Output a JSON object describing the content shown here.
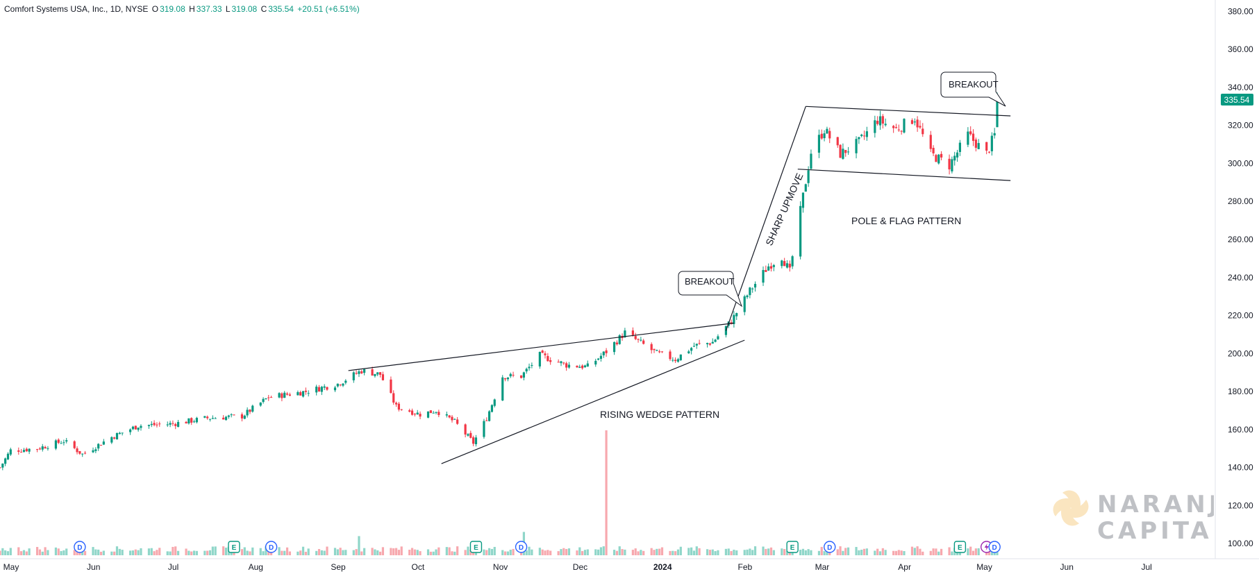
{
  "legend": {
    "symbol": "Comfort Systems USA, Inc., 1D, NYSE",
    "o_label": "O",
    "o_value": "319.08",
    "h_label": "H",
    "h_value": "337.33",
    "l_label": "L",
    "l_value": "319.08",
    "c_label": "C",
    "c_value": "335.54",
    "change": "+20.51 (+6.51%)"
  },
  "price_tag": "335.54",
  "colors": {
    "up": "#089981",
    "down": "#f23645",
    "vol_up": "#8fd6c9",
    "vol_down": "#f7a8ae",
    "line": "#131722",
    "tag": "#089981"
  },
  "annotations": {
    "breakout_left": "BREAKOUT",
    "breakout_right": "BREAKOUT",
    "sharp_upmove": "SHARP UPMOVE",
    "pole_flag": "POLE & FLAG PATTERN",
    "rising_wedge": "RISING WEDGE PATTERN"
  },
  "watermark": {
    "line1": "NARANJ",
    "line2": "CAPITAL"
  },
  "event_markers": [
    {
      "type": "D",
      "date": "2023-05-31"
    },
    {
      "type": "E",
      "date": "2023-07-28"
    },
    {
      "type": "D",
      "date": "2023-08-11"
    },
    {
      "type": "E",
      "date": "2023-10-27"
    },
    {
      "type": "D",
      "date": "2023-11-13"
    },
    {
      "type": "E",
      "date": "2024-02-23"
    },
    {
      "type": "D",
      "date": "2024-03-08"
    },
    {
      "type": "E",
      "date": "2024-04-26"
    },
    {
      "type": "lightning",
      "date": "2024-05-06"
    },
    {
      "type": "D",
      "date": "2024-05-09"
    }
  ],
  "chart_data": {
    "type": "candlestick",
    "title": "Comfort Systems USA, Inc., 1D, NYSE",
    "x_axis": {
      "type": "date",
      "range": [
        "2023-05-01",
        "2024-07-31"
      ],
      "tick_labels": [
        "May",
        "Jun",
        "Jul",
        "Aug",
        "Sep",
        "Oct",
        "Nov",
        "Dec",
        "2024",
        "Feb",
        "Mar",
        "Apr",
        "May",
        "Jun",
        "Jul"
      ]
    },
    "y_axis": {
      "range": [
        92,
        386
      ],
      "position": "right",
      "tick_labels": [
        "100.00",
        "120.00",
        "140.00",
        "160.00",
        "180.00",
        "200.00",
        "220.00",
        "240.00",
        "260.00",
        "280.00",
        "300.00",
        "320.00",
        "340.00",
        "360.00",
        "380.00"
      ]
    },
    "grid": false,
    "price_anchors": [
      [
        "2023-05-01",
        140
      ],
      [
        "2023-05-05",
        149
      ],
      [
        "2023-05-15",
        150
      ],
      [
        "2023-05-25",
        154
      ],
      [
        "2023-06-01",
        147
      ],
      [
        "2023-06-12",
        156
      ],
      [
        "2023-06-22",
        162
      ],
      [
        "2023-07-05",
        163
      ],
      [
        "2023-07-18",
        166
      ],
      [
        "2023-07-31",
        167
      ],
      [
        "2023-08-10",
        177
      ],
      [
        "2023-08-24",
        180
      ],
      [
        "2023-09-05",
        184
      ],
      [
        "2023-09-14",
        191
      ],
      [
        "2023-09-21",
        189
      ],
      [
        "2023-09-27",
        172
      ],
      [
        "2023-10-06",
        168
      ],
      [
        "2023-10-12",
        170
      ],
      [
        "2023-10-19",
        164
      ],
      [
        "2023-10-26",
        153
      ],
      [
        "2023-10-31",
        166
      ],
      [
        "2023-11-06",
        188
      ],
      [
        "2023-11-13",
        188
      ],
      [
        "2023-11-20",
        199
      ],
      [
        "2023-11-30",
        194
      ],
      [
        "2023-12-08",
        193
      ],
      [
        "2023-12-15",
        201
      ],
      [
        "2023-12-22",
        211
      ],
      [
        "2024-01-03",
        200
      ],
      [
        "2024-01-10",
        197
      ],
      [
        "2024-01-17",
        204
      ],
      [
        "2024-01-24",
        206
      ],
      [
        "2024-01-31",
        217
      ],
      [
        "2024-02-07",
        233
      ],
      [
        "2024-02-14",
        246
      ],
      [
        "2024-02-19",
        251
      ],
      [
        "2024-02-22",
        243
      ],
      [
        "2024-02-26",
        275
      ],
      [
        "2024-03-01",
        306
      ],
      [
        "2024-03-06",
        318
      ],
      [
        "2024-03-12",
        305
      ],
      [
        "2024-03-19",
        311
      ],
      [
        "2024-03-26",
        323
      ],
      [
        "2024-04-02",
        318
      ],
      [
        "2024-04-09",
        324
      ],
      [
        "2024-04-15",
        305
      ],
      [
        "2024-04-22",
        299
      ],
      [
        "2024-04-29",
        315
      ],
      [
        "2024-05-06",
        305
      ],
      [
        "2024-05-09",
        315
      ],
      [
        "2024-05-10",
        335.54
      ]
    ],
    "last_candle": {
      "date": "2024-05-10",
      "open": 319.08,
      "high": 337.33,
      "low": 319.08,
      "close": 335.54
    },
    "volume_spikes": [
      [
        "2023-09-13",
        2.3
      ],
      [
        "2023-11-14",
        2.8
      ],
      [
        "2023-12-15",
        15.0
      ]
    ],
    "trendlines": {
      "wedge_upper": [
        [
          "2023-09-09",
          191
        ],
        [
          "2024-02-01",
          216
        ]
      ],
      "wedge_lower": [
        [
          "2023-10-14",
          142
        ],
        [
          "2024-02-05",
          207
        ]
      ],
      "pole": [
        [
          "2024-01-29",
          212
        ],
        [
          "2024-02-28",
          330
        ]
      ],
      "flag_upper": [
        [
          "2024-02-28",
          330
        ],
        [
          "2024-05-15",
          325
        ]
      ],
      "flag_lower": [
        [
          "2024-02-25",
          297
        ],
        [
          "2024-05-15",
          291
        ]
      ]
    }
  }
}
